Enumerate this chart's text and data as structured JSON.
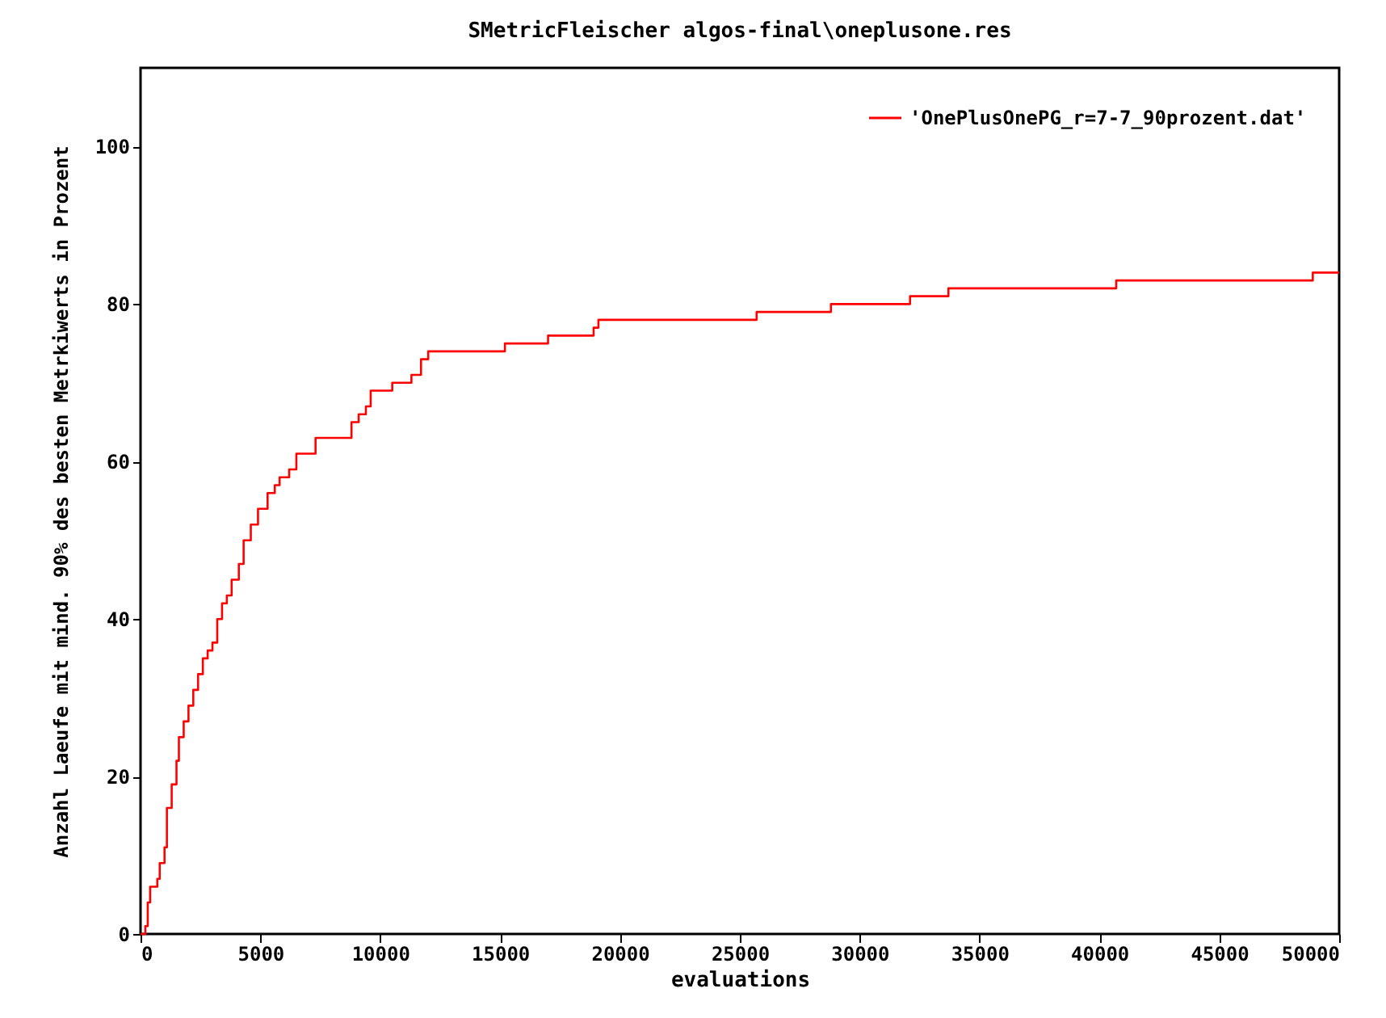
{
  "chart_data": {
    "type": "step",
    "title": "SMetricFleischer algos-final\\oneplusone.res",
    "xlabel": "evaluations",
    "ylabel": "Anzahl Laeufe mit mind. 90% des besten Metrkiwerts in Prozent",
    "x": [
      0,
      200,
      300,
      400,
      700,
      800,
      1000,
      1100,
      1300,
      1500,
      1600,
      1800,
      2000,
      2200,
      2400,
      2600,
      2800,
      3000,
      3200,
      3400,
      3600,
      3800,
      4100,
      4300,
      4600,
      4900,
      5300,
      5600,
      5800,
      6200,
      6500,
      7300,
      8800,
      9100,
      9400,
      9600,
      10500,
      11300,
      11700,
      12000,
      12700,
      15200,
      17000,
      18900,
      19100,
      25700,
      28800,
      32100,
      33700,
      40700,
      48900,
      50000
    ],
    "series": [
      {
        "name": "'OnePlusOnePG_r=7-7_90prozent.dat'",
        "color": "#ff0000",
        "values": [
          0,
          1,
          4,
          6,
          7,
          9,
          11,
          16,
          19,
          22,
          25,
          27,
          29,
          31,
          33,
          35,
          36,
          37,
          40,
          42,
          43,
          45,
          47,
          50,
          52,
          54,
          56,
          57,
          58,
          59,
          61,
          63,
          65,
          66,
          67,
          69,
          70,
          71,
          73,
          74,
          74,
          75,
          76,
          77,
          78,
          79,
          80,
          81,
          82,
          83,
          84,
          84
        ]
      }
    ],
    "xlim": [
      0,
      50000
    ],
    "xticks": [
      0,
      5000,
      10000,
      15000,
      20000,
      25000,
      30000,
      35000,
      40000,
      45000,
      50000
    ],
    "ylim": [
      0,
      110
    ],
    "yticks": [
      0,
      20,
      40,
      60,
      80,
      100
    ],
    "grid": false,
    "legend": "top right",
    "marker": "none",
    "line_style": "solid"
  }
}
